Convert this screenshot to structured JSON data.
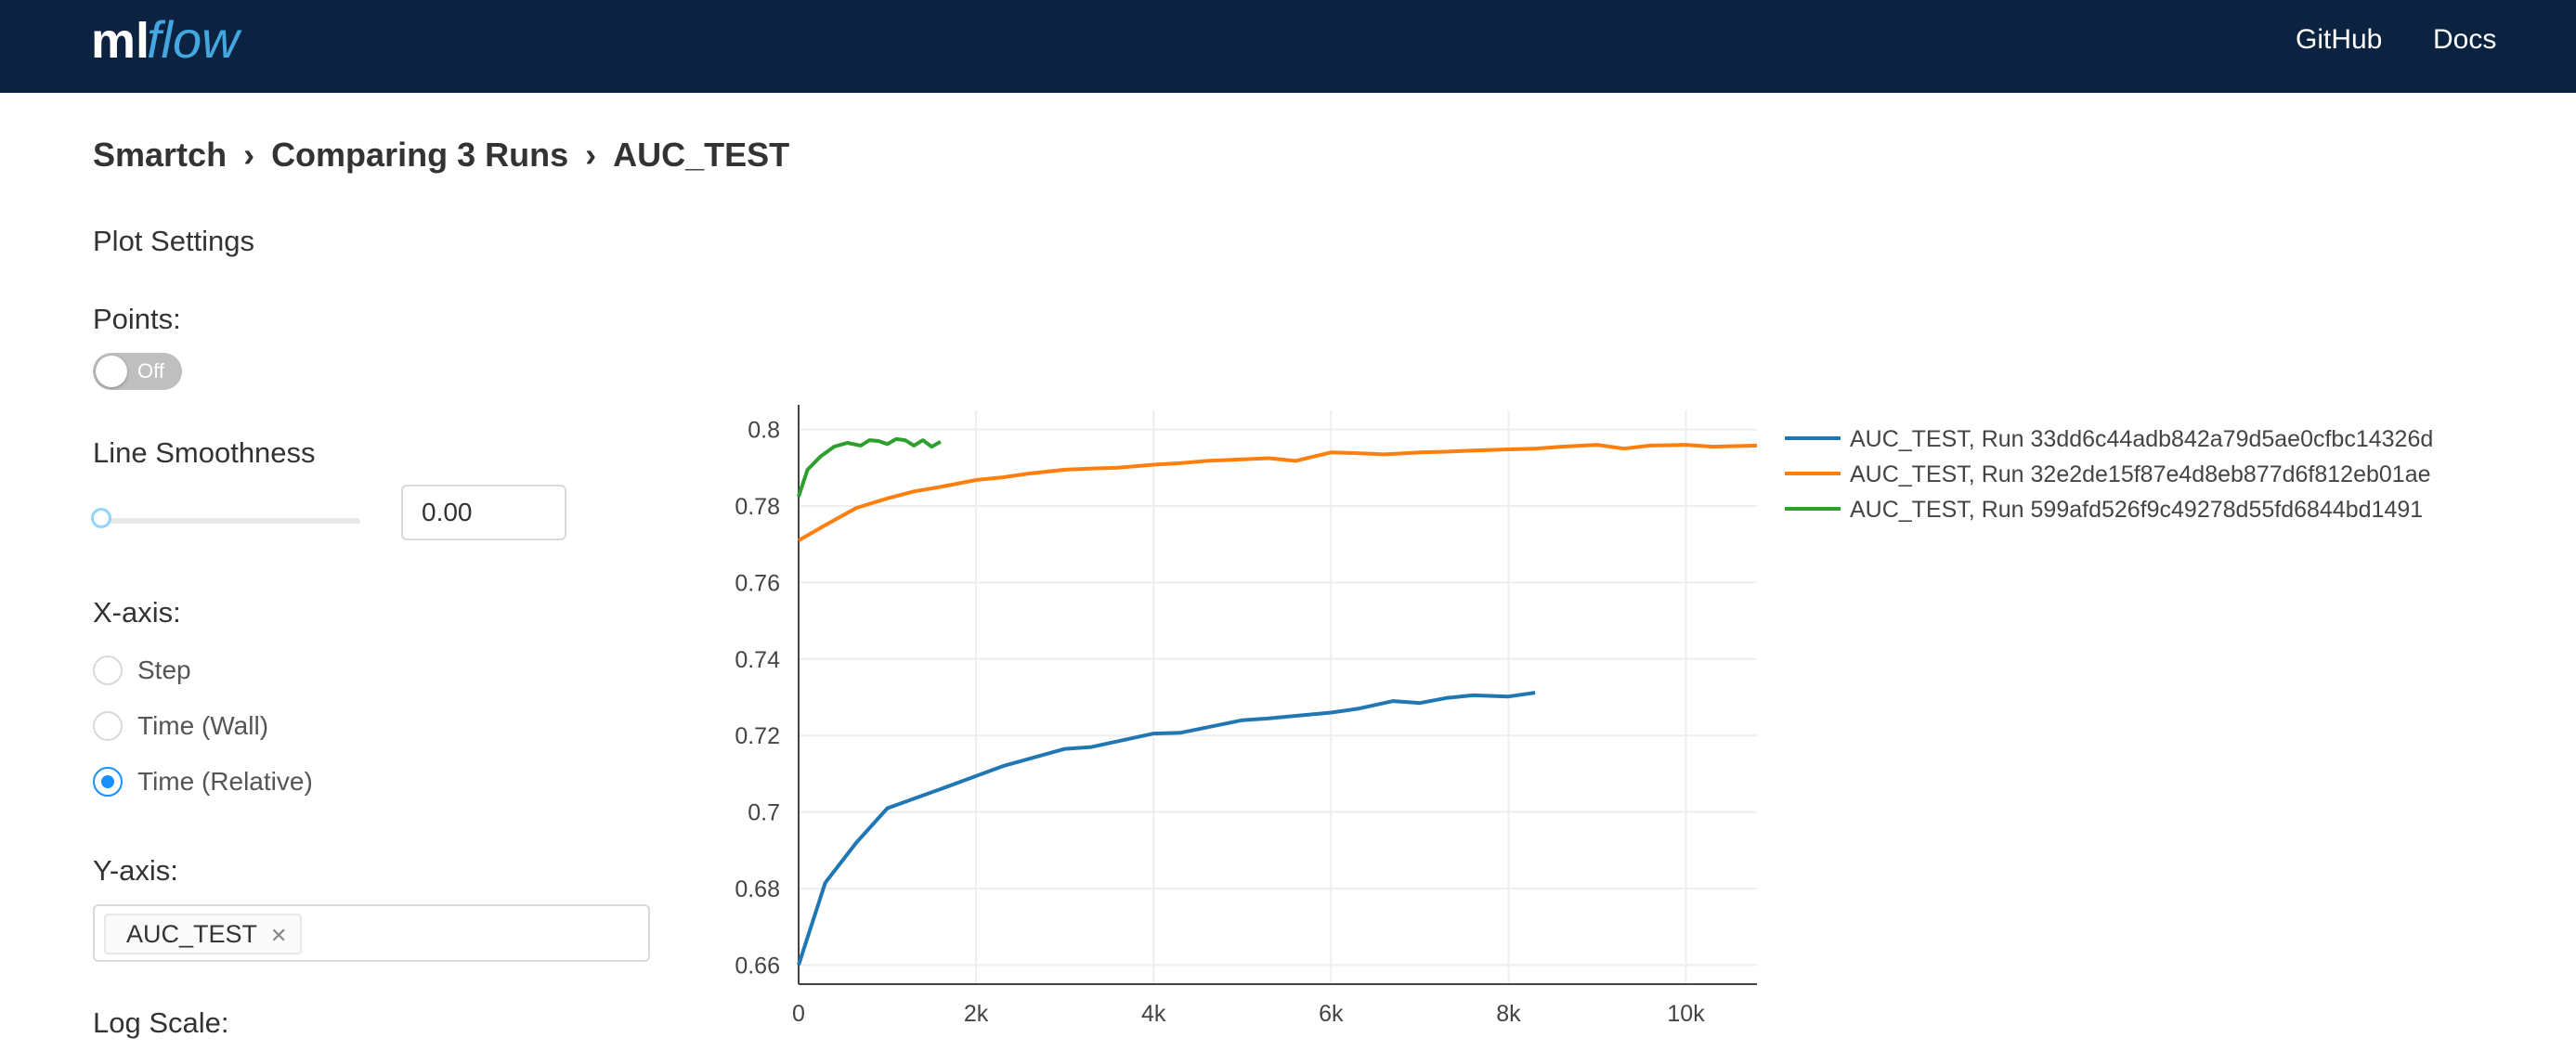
{
  "header": {
    "logo_text_ml": "ml",
    "logo_text_flow": "flow",
    "links": [
      "GitHub",
      "Docs"
    ]
  },
  "breadcrumb": [
    "Smartch",
    "Comparing 3 Runs",
    "AUC_TEST"
  ],
  "settings": {
    "title": "Plot Settings",
    "points_label": "Points:",
    "points_toggle": "Off",
    "smoothness_label": "Line Smoothness",
    "smoothness_value": "0.00",
    "xaxis_label": "X-axis:",
    "xaxis_options": [
      "Step",
      "Time (Wall)",
      "Time (Relative)"
    ],
    "xaxis_selected": "Time (Relative)",
    "yaxis_label": "Y-axis:",
    "yaxis_selected": [
      "AUC_TEST"
    ],
    "logscale_label": "Log Scale:"
  },
  "chart_data": {
    "type": "line",
    "xlim": [
      0,
      10800
    ],
    "ylim": [
      0.655,
      0.805
    ],
    "x_ticks": [
      0,
      2000,
      4000,
      6000,
      8000,
      10000
    ],
    "x_tick_labels": [
      "0",
      "2k",
      "4k",
      "6k",
      "8k",
      "10k"
    ],
    "y_ticks": [
      0.66,
      0.68,
      0.7,
      0.72,
      0.74,
      0.76,
      0.78,
      0.8
    ],
    "y_tick_labels": [
      "0.66",
      "0.68",
      "0.7",
      "0.72",
      "0.74",
      "0.76",
      "0.78",
      "0.8"
    ],
    "grid": true,
    "legend_position": "right",
    "series": [
      {
        "name": "AUC_TEST, Run 33dd6c44adb842a79d5ae0cfbc14326d",
        "color": "#1f77b4",
        "x": [
          0,
          300,
          650,
          1000,
          1600,
          2300,
          3000,
          3300,
          4000,
          4300,
          5000,
          5300,
          6000,
          6300,
          6700,
          7000,
          7300,
          7600,
          8000,
          8300
        ],
        "y": [
          0.66,
          0.6815,
          0.692,
          0.701,
          0.706,
          0.712,
          0.7165,
          0.717,
          0.7205,
          0.7207,
          0.724,
          0.7245,
          0.726,
          0.727,
          0.729,
          0.7285,
          0.7298,
          0.7305,
          0.7302,
          0.7312
        ]
      },
      {
        "name": "AUC_TEST, Run 32e2de15f87e4d8eb877d6f812eb01ae",
        "color": "#ff7f0e",
        "x": [
          0,
          300,
          650,
          1000,
          1300,
          1600,
          2000,
          2300,
          2600,
          3000,
          3300,
          3600,
          4000,
          4300,
          4600,
          5000,
          5300,
          5600,
          6000,
          6300,
          6600,
          7000,
          7300,
          7600,
          8000,
          8300,
          8600,
          9000,
          9300,
          9600,
          10000,
          10300,
          10800
        ],
        "y": [
          0.771,
          0.775,
          0.7795,
          0.782,
          0.7838,
          0.785,
          0.7868,
          0.7875,
          0.7885,
          0.7895,
          0.7898,
          0.79,
          0.7908,
          0.7912,
          0.7918,
          0.7922,
          0.7925,
          0.7918,
          0.794,
          0.7938,
          0.7935,
          0.794,
          0.7942,
          0.7945,
          0.7948,
          0.795,
          0.7955,
          0.796,
          0.795,
          0.7958,
          0.796,
          0.7955,
          0.7958
        ]
      },
      {
        "name": "AUC_TEST, Run 599afd526f9c49278d55fd6844bd1491",
        "color": "#2ca02c",
        "x": [
          0,
          100,
          250,
          400,
          550,
          700,
          800,
          900,
          1000,
          1100,
          1200,
          1300,
          1400,
          1500,
          1600
        ],
        "y": [
          0.7825,
          0.7895,
          0.793,
          0.7955,
          0.7965,
          0.7958,
          0.7972,
          0.797,
          0.7962,
          0.7975,
          0.7972,
          0.7958,
          0.7972,
          0.7955,
          0.7968
        ]
      }
    ]
  }
}
